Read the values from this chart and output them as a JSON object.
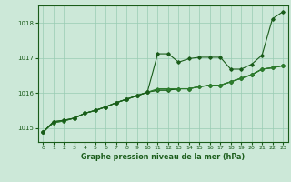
{
  "background_color": "#cce8d8",
  "plot_bg_color": "#cce8d8",
  "grid_color": "#99ccb3",
  "line_color_dark": "#1a5c1a",
  "line_color_mid": "#2e7d2e",
  "xlabel": "Graphe pression niveau de la mer (hPa)",
  "ylim": [
    1014.6,
    1018.5
  ],
  "xlim": [
    -0.5,
    23.5
  ],
  "yticks": [
    1015,
    1016,
    1017,
    1018
  ],
  "xticks": [
    0,
    1,
    2,
    3,
    4,
    5,
    6,
    7,
    8,
    9,
    10,
    11,
    12,
    13,
    14,
    15,
    16,
    17,
    18,
    19,
    20,
    21,
    22,
    23
  ],
  "series1": [
    1014.88,
    1015.18,
    1015.22,
    1015.28,
    1015.42,
    1015.5,
    1015.6,
    1015.72,
    1015.82,
    1015.92,
    1016.02,
    1017.12,
    1017.12,
    1016.88,
    1016.98,
    1017.02,
    1017.02,
    1017.02,
    1016.68,
    1016.68,
    1016.82,
    1017.08,
    1018.12,
    1018.32
  ],
  "series2": [
    1014.88,
    1015.18,
    1015.22,
    1015.28,
    1015.42,
    1015.5,
    1015.6,
    1015.72,
    1015.82,
    1015.92,
    1016.02,
    1016.08,
    1016.08,
    1016.12,
    1016.12,
    1016.18,
    1016.22,
    1016.22,
    1016.32,
    1016.42,
    1016.52,
    1016.68,
    1016.72,
    1016.78
  ],
  "series3": [
    1014.88,
    1015.15,
    1015.2,
    1015.28,
    1015.42,
    1015.5,
    1015.6,
    1015.72,
    1015.82,
    1015.92,
    1016.02,
    1016.08,
    1016.08,
    1016.12,
    1016.12,
    1016.18,
    1016.22,
    1016.22,
    1016.32,
    1016.42,
    1016.52,
    1016.68,
    1016.72,
    1016.78
  ],
  "series4": [
    1014.88,
    1015.15,
    1015.2,
    1015.28,
    1015.42,
    1015.5,
    1015.6,
    1015.72,
    1015.82,
    1015.92,
    1016.02,
    1016.12,
    1016.12,
    1016.12,
    1016.12,
    1016.18,
    1016.22,
    1016.22,
    1016.32,
    1016.42,
    1016.52,
    1016.68,
    1016.72,
    1016.78
  ],
  "marker": "D",
  "marker_size": 1.8,
  "linewidth": 0.8
}
